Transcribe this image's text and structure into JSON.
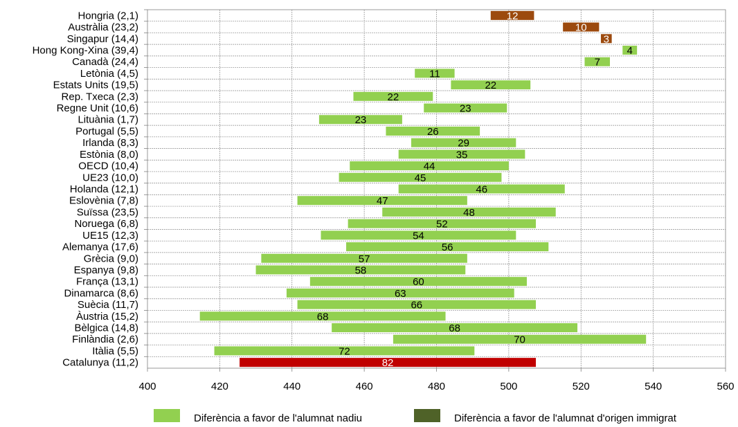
{
  "chart_data": {
    "type": "bar",
    "orientation": "horizontal-range",
    "title": "",
    "xlabel": "",
    "ylabel": "",
    "xlim": [
      400,
      560
    ],
    "x_ticks": [
      "400",
      "420",
      "440",
      "460",
      "480",
      "500",
      "520",
      "540",
      "560"
    ],
    "x_tick_values": [
      400,
      420,
      440,
      460,
      480,
      500,
      520,
      540,
      560
    ],
    "grid": true,
    "legend_position": "bottom",
    "colors": {
      "native": "#92d050",
      "immigrant": "#9c4a0e",
      "catalunya": "#c00000",
      "legend_immigrant": "#4f6228"
    },
    "legend": [
      {
        "label": "Diferència a favor de l'alumnat nadiu",
        "color": "#92d050"
      },
      {
        "label": "Diferència a favor de l'alumnat  d'origen immigrat",
        "color": "#4f6228"
      }
    ],
    "categories": [
      "Hongria (2,1)",
      "Austràlia (23,2)",
      "Singapur (14,4)",
      "Hong Kong-Xina (39,4)",
      "Canadà (24,4)",
      "Letònia (4,5)",
      "Estats Units (19,5)",
      "Rep. Txeca (2,3)",
      "Regne Unit (10,6)",
      "Lituània (1,7)",
      "Portugal (5,5)",
      "Irlanda (8,3)",
      "Estònia (8,0)",
      "OECD (10,4)",
      "UE23 (10,0)",
      "Holanda (12,1)",
      "Eslovènia (7,8)",
      "Suïssa (23,5)",
      "Noruega (6,8)",
      "UE15 (12,3)",
      "Alemanya (17,6)",
      "Grècia (9,0)",
      "Espanya (9,8)",
      "França (13,1)",
      "Dinamarca (8,6)",
      "Suècia (11,7)",
      "Àustria (15,2)",
      "Bèlgica (14,8)",
      "Finlàndia (2,6)",
      "Itàlia (5,5)",
      "Catalunya (11,2)"
    ],
    "bars": [
      {
        "start": 495,
        "end": 507,
        "label": "12",
        "group": "immigrant"
      },
      {
        "start": 515,
        "end": 525,
        "label": "10",
        "group": "immigrant"
      },
      {
        "start": 525.5,
        "end": 528.5,
        "label": "3",
        "group": "immigrant"
      },
      {
        "start": 531.5,
        "end": 535.5,
        "label": "4",
        "group": "native"
      },
      {
        "start": 521,
        "end": 528,
        "label": "7",
        "group": "native"
      },
      {
        "start": 474,
        "end": 485,
        "label": "11",
        "group": "native"
      },
      {
        "start": 484,
        "end": 506,
        "label": "22",
        "group": "native"
      },
      {
        "start": 457,
        "end": 479,
        "label": "22",
        "group": "native"
      },
      {
        "start": 476.5,
        "end": 499.5,
        "label": "23",
        "group": "native"
      },
      {
        "start": 447.5,
        "end": 470.5,
        "label": "23",
        "group": "native"
      },
      {
        "start": 466,
        "end": 492,
        "label": "26",
        "group": "native"
      },
      {
        "start": 473,
        "end": 502,
        "label": "29",
        "group": "native"
      },
      {
        "start": 469.5,
        "end": 504.5,
        "label": "35",
        "group": "native"
      },
      {
        "start": 456,
        "end": 500,
        "label": "44",
        "group": "native"
      },
      {
        "start": 453,
        "end": 498,
        "label": "45",
        "group": "native"
      },
      {
        "start": 469.5,
        "end": 515.5,
        "label": "46",
        "group": "native"
      },
      {
        "start": 441.5,
        "end": 488.5,
        "label": "47",
        "group": "native"
      },
      {
        "start": 465,
        "end": 513,
        "label": "48",
        "group": "native"
      },
      {
        "start": 455.5,
        "end": 507.5,
        "label": "52",
        "group": "native"
      },
      {
        "start": 448,
        "end": 502,
        "label": "54",
        "group": "native"
      },
      {
        "start": 455,
        "end": 511,
        "label": "56",
        "group": "native"
      },
      {
        "start": 431.5,
        "end": 488.5,
        "label": "57",
        "group": "native"
      },
      {
        "start": 430,
        "end": 488,
        "label": "58",
        "group": "native"
      },
      {
        "start": 445,
        "end": 505,
        "label": "60",
        "group": "native"
      },
      {
        "start": 438.5,
        "end": 501.5,
        "label": "63",
        "group": "native"
      },
      {
        "start": 441.5,
        "end": 507.5,
        "label": "66",
        "group": "native"
      },
      {
        "start": 414.5,
        "end": 482.5,
        "label": "68",
        "group": "native"
      },
      {
        "start": 451,
        "end": 519,
        "label": "68",
        "group": "native"
      },
      {
        "start": 468,
        "end": 538,
        "label": "70",
        "group": "native"
      },
      {
        "start": 418.5,
        "end": 490.5,
        "label": "72",
        "group": "native"
      },
      {
        "start": 425.5,
        "end": 507.5,
        "label": "82",
        "group": "catalunya"
      }
    ]
  }
}
